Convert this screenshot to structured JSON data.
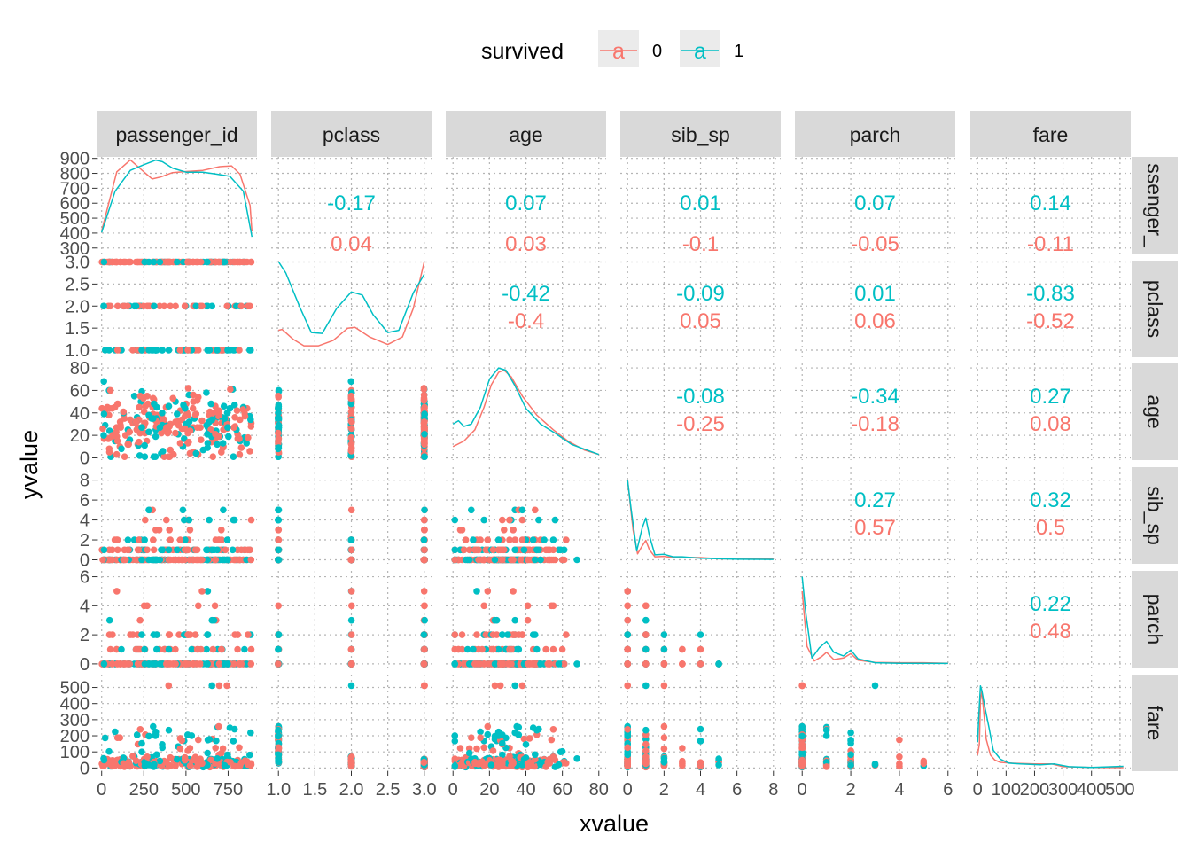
{
  "legend": {
    "title": "survived",
    "items": [
      {
        "label": "0",
        "color": "#F8766D",
        "key_glyph": "a"
      },
      {
        "label": "1",
        "color": "#00BFC4",
        "key_glyph": "a"
      }
    ]
  },
  "axis_titles": {
    "x": "xvalue",
    "y": "yvalue"
  },
  "chart_data": {
    "type": "scatter",
    "layout": "scatterplot matrix (pairs plot): lower panels = scatter by survived, diagonal = density lines, upper panels = correlation by survived",
    "variables": [
      "passenger_id",
      "pclass",
      "age",
      "sib_sp",
      "parch",
      "fare"
    ],
    "column_strip_labels": [
      "passenger_id",
      "pclass",
      "age",
      "sib_sp",
      "parch",
      "fare"
    ],
    "row_strip_labels": [
      "ssenger_",
      "pclass",
      "age",
      "sib_sp",
      "parch",
      "fare"
    ],
    "series": [
      {
        "name": "0",
        "color": "#F8766D"
      },
      {
        "name": "1",
        "color": "#00BFC4"
      }
    ],
    "x_axes": [
      {
        "range": [
          -30,
          921
        ],
        "ticks": [
          0,
          250,
          500,
          750
        ],
        "tick_labels": [
          "0",
          "250",
          "500",
          "750"
        ]
      },
      {
        "range": [
          0.9,
          3.1
        ],
        "ticks": [
          1.0,
          1.5,
          2.0,
          2.5,
          3.0
        ],
        "tick_labels": [
          "1.0",
          "1.5",
          "2.0",
          "2.5",
          "3.0"
        ]
      },
      {
        "range": [
          -4,
          84
        ],
        "ticks": [
          0,
          20,
          40,
          60,
          80
        ],
        "tick_labels": [
          "0",
          "20",
          "40",
          "60",
          "80"
        ]
      },
      {
        "range": [
          -0.4,
          8.4
        ],
        "ticks": [
          0,
          2,
          4,
          6,
          8
        ],
        "tick_labels": [
          "0",
          "2",
          "4",
          "6",
          "8"
        ]
      },
      {
        "range": [
          -0.3,
          6.3
        ],
        "ticks": [
          0,
          2,
          4,
          6
        ],
        "tick_labels": [
          "0",
          "2",
          "4",
          "6"
        ]
      },
      {
        "range": [
          -25.6,
          537.9
        ],
        "ticks": [
          0,
          100,
          200,
          300,
          400,
          500
        ],
        "tick_labels": [
          "0",
          "100",
          "200",
          "300",
          "400",
          "500"
        ]
      }
    ],
    "y_axes": [
      {
        "range": [
          263,
          910
        ],
        "ticks": [
          300,
          400,
          500,
          600,
          700,
          800,
          900
        ],
        "tick_labels": [
          "300",
          "400",
          "500",
          "600",
          "700",
          "800",
          "900"
        ]
      },
      {
        "range": [
          0.84,
          3.03
        ],
        "ticks": [
          1.0,
          1.5,
          2.0,
          2.5,
          3.0
        ],
        "tick_labels": [
          "1.0",
          "1.5",
          "2.0",
          "2.5",
          "3.0"
        ]
      },
      {
        "range": [
          -2,
          84
        ],
        "ticks": [
          0,
          20,
          40,
          60,
          80
        ],
        "tick_labels": [
          "0",
          "20",
          "40",
          "60",
          "80"
        ]
      },
      {
        "range": [
          -0.4,
          9.3
        ],
        "ticks": [
          0,
          2,
          4,
          6,
          8
        ],
        "tick_labels": [
          "0",
          "2",
          "4",
          "6",
          "8"
        ]
      },
      {
        "range": [
          -0.25,
          6.4
        ],
        "ticks": [
          0,
          2,
          4,
          6
        ],
        "tick_labels": [
          "0",
          "2",
          "4",
          "6"
        ]
      },
      {
        "range": [
          -20,
          580
        ],
        "ticks": [
          0,
          100,
          200,
          300,
          400,
          500
        ],
        "tick_labels": [
          "0",
          "100",
          "200",
          "300",
          "400",
          "500"
        ]
      }
    ],
    "correlations": [
      {
        "row": 0,
        "col": 1,
        "r1": "-0.17",
        "r0": "0.04"
      },
      {
        "row": 0,
        "col": 2,
        "r1": "0.07",
        "r0": "0.03"
      },
      {
        "row": 0,
        "col": 3,
        "r1": "0.01",
        "r0": "-0.1"
      },
      {
        "row": 0,
        "col": 4,
        "r1": "0.07",
        "r0": "-0.05"
      },
      {
        "row": 0,
        "col": 5,
        "r1": "0.14",
        "r0": "-0.11"
      },
      {
        "row": 1,
        "col": 2,
        "r1": "-0.42",
        "r0": "-0.4"
      },
      {
        "row": 1,
        "col": 3,
        "r1": "-0.09",
        "r0": "0.05"
      },
      {
        "row": 1,
        "col": 4,
        "r1": "0.01",
        "r0": "0.06"
      },
      {
        "row": 1,
        "col": 5,
        "r1": "-0.83",
        "r0": "-0.52"
      },
      {
        "row": 2,
        "col": 3,
        "r1": "-0.08",
        "r0": "-0.25"
      },
      {
        "row": 2,
        "col": 4,
        "r1": "-0.34",
        "r0": "-0.18"
      },
      {
        "row": 2,
        "col": 5,
        "r1": "0.27",
        "r0": "0.08"
      },
      {
        "row": 3,
        "col": 4,
        "r1": "0.27",
        "r0": "0.57"
      },
      {
        "row": 3,
        "col": 5,
        "r1": "0.32",
        "r0": "0.5"
      },
      {
        "row": 4,
        "col": 5,
        "r1": "0.22",
        "r0": "0.48"
      }
    ],
    "densities": [
      {
        "var": "passenger_id",
        "s0": [
          [
            0,
            415
          ],
          [
            90,
            810
          ],
          [
            170,
            890
          ],
          [
            260,
            800
          ],
          [
            300,
            762
          ],
          [
            350,
            775
          ],
          [
            420,
            805
          ],
          [
            500,
            812
          ],
          [
            600,
            820
          ],
          [
            700,
            845
          ],
          [
            770,
            850
          ],
          [
            820,
            795
          ],
          [
            880,
            585
          ],
          [
            891,
            410
          ]
        ],
        "s1": [
          [
            0,
            405
          ],
          [
            80,
            680
          ],
          [
            170,
            820
          ],
          [
            250,
            858
          ],
          [
            320,
            888
          ],
          [
            360,
            878
          ],
          [
            420,
            835
          ],
          [
            500,
            808
          ],
          [
            600,
            808
          ],
          [
            680,
            795
          ],
          [
            760,
            780
          ],
          [
            840,
            680
          ],
          [
            891,
            375
          ]
        ]
      },
      {
        "var": "pclass",
        "s0": [
          [
            1.0,
            1.45
          ],
          [
            1.05,
            1.47
          ],
          [
            1.2,
            1.25
          ],
          [
            1.35,
            1.1
          ],
          [
            1.55,
            1.1
          ],
          [
            1.75,
            1.22
          ],
          [
            1.95,
            1.5
          ],
          [
            2.05,
            1.52
          ],
          [
            2.25,
            1.3
          ],
          [
            2.5,
            1.13
          ],
          [
            2.7,
            1.3
          ],
          [
            2.85,
            1.95
          ],
          [
            3.0,
            3.01
          ]
        ],
        "s1": [
          [
            1.0,
            3.01
          ],
          [
            1.1,
            2.75
          ],
          [
            1.3,
            1.95
          ],
          [
            1.45,
            1.4
          ],
          [
            1.6,
            1.38
          ],
          [
            1.8,
            1.95
          ],
          [
            2.0,
            2.32
          ],
          [
            2.15,
            2.25
          ],
          [
            2.3,
            1.8
          ],
          [
            2.5,
            1.4
          ],
          [
            2.65,
            1.45
          ],
          [
            2.85,
            2.3
          ],
          [
            3.0,
            2.72
          ]
        ]
      },
      {
        "var": "age",
        "s0": [
          [
            0,
            10
          ],
          [
            6,
            15
          ],
          [
            12,
            25
          ],
          [
            17,
            45
          ],
          [
            21,
            65
          ],
          [
            25,
            76
          ],
          [
            28,
            78
          ],
          [
            32,
            72
          ],
          [
            38,
            55
          ],
          [
            46,
            38
          ],
          [
            55,
            25
          ],
          [
            63,
            15
          ],
          [
            72,
            7
          ],
          [
            80,
            3
          ]
        ],
        "s1": [
          [
            0,
            30
          ],
          [
            3,
            33
          ],
          [
            6,
            28
          ],
          [
            10,
            30
          ],
          [
            15,
            45
          ],
          [
            20,
            70
          ],
          [
            25,
            80
          ],
          [
            29,
            78
          ],
          [
            34,
            64
          ],
          [
            40,
            44
          ],
          [
            48,
            30
          ],
          [
            56,
            22
          ],
          [
            65,
            12
          ],
          [
            80,
            3
          ]
        ]
      },
      {
        "var": "sib_sp",
        "s0": [
          [
            0,
            8.0
          ],
          [
            0.3,
            3.0
          ],
          [
            0.55,
            0.6
          ],
          [
            0.8,
            1.4
          ],
          [
            1.0,
            1.95
          ],
          [
            1.2,
            1.0
          ],
          [
            1.5,
            0.3
          ],
          [
            2.0,
            0.35
          ],
          [
            2.5,
            0.2
          ],
          [
            3.0,
            0.25
          ],
          [
            4.0,
            0.22
          ],
          [
            5,
            0.1
          ],
          [
            6,
            0.08
          ],
          [
            8,
            0.06
          ]
        ],
        "s1": [
          [
            0,
            8.0
          ],
          [
            0.2,
            5.0
          ],
          [
            0.5,
            0.9
          ],
          [
            0.8,
            3.2
          ],
          [
            1.0,
            4.2
          ],
          [
            1.2,
            2.4
          ],
          [
            1.5,
            0.5
          ],
          [
            2.0,
            0.55
          ],
          [
            2.5,
            0.3
          ],
          [
            3.0,
            0.3
          ],
          [
            4.0,
            0.15
          ],
          [
            6,
            0.05
          ],
          [
            8,
            0.04
          ]
        ]
      },
      {
        "var": "parch",
        "s0": [
          [
            0,
            5.0
          ],
          [
            0.2,
            1.2
          ],
          [
            0.5,
            0.2
          ],
          [
            0.8,
            0.5
          ],
          [
            1.0,
            0.8
          ],
          [
            1.3,
            0.3
          ],
          [
            1.7,
            0.4
          ],
          [
            2.0,
            0.7
          ],
          [
            2.3,
            0.25
          ],
          [
            3.0,
            0.1
          ],
          [
            4.0,
            0.08
          ],
          [
            5.0,
            0.08
          ],
          [
            6.0,
            0.04
          ]
        ],
        "s1": [
          [
            0,
            6.0
          ],
          [
            0.15,
            3.5
          ],
          [
            0.4,
            0.4
          ],
          [
            0.7,
            1.1
          ],
          [
            1.0,
            1.55
          ],
          [
            1.3,
            0.8
          ],
          [
            1.7,
            0.55
          ],
          [
            2.0,
            0.95
          ],
          [
            2.3,
            0.35
          ],
          [
            3.0,
            0.08
          ],
          [
            4.0,
            0.04
          ],
          [
            6.0,
            0.03
          ]
        ]
      },
      {
        "var": "fare",
        "s0": [
          [
            0,
            80
          ],
          [
            6,
            150
          ],
          [
            10,
            420
          ],
          [
            15,
            480
          ],
          [
            20,
            380
          ],
          [
            30,
            180
          ],
          [
            45,
            80
          ],
          [
            60,
            50
          ],
          [
            80,
            35
          ],
          [
            120,
            30
          ],
          [
            200,
            25
          ],
          [
            260,
            25
          ],
          [
            300,
            8
          ],
          [
            400,
            3
          ],
          [
            512,
            2
          ]
        ],
        "s1": [
          [
            0,
            160
          ],
          [
            5,
            350
          ],
          [
            10,
            510
          ],
          [
            15,
            480
          ],
          [
            25,
            380
          ],
          [
            40,
            250
          ],
          [
            55,
            110
          ],
          [
            80,
            55
          ],
          [
            110,
            30
          ],
          [
            150,
            25
          ],
          [
            220,
            20
          ],
          [
            270,
            25
          ],
          [
            320,
            8
          ],
          [
            400,
            3
          ],
          [
            512,
            10
          ]
        ]
      }
    ]
  }
}
